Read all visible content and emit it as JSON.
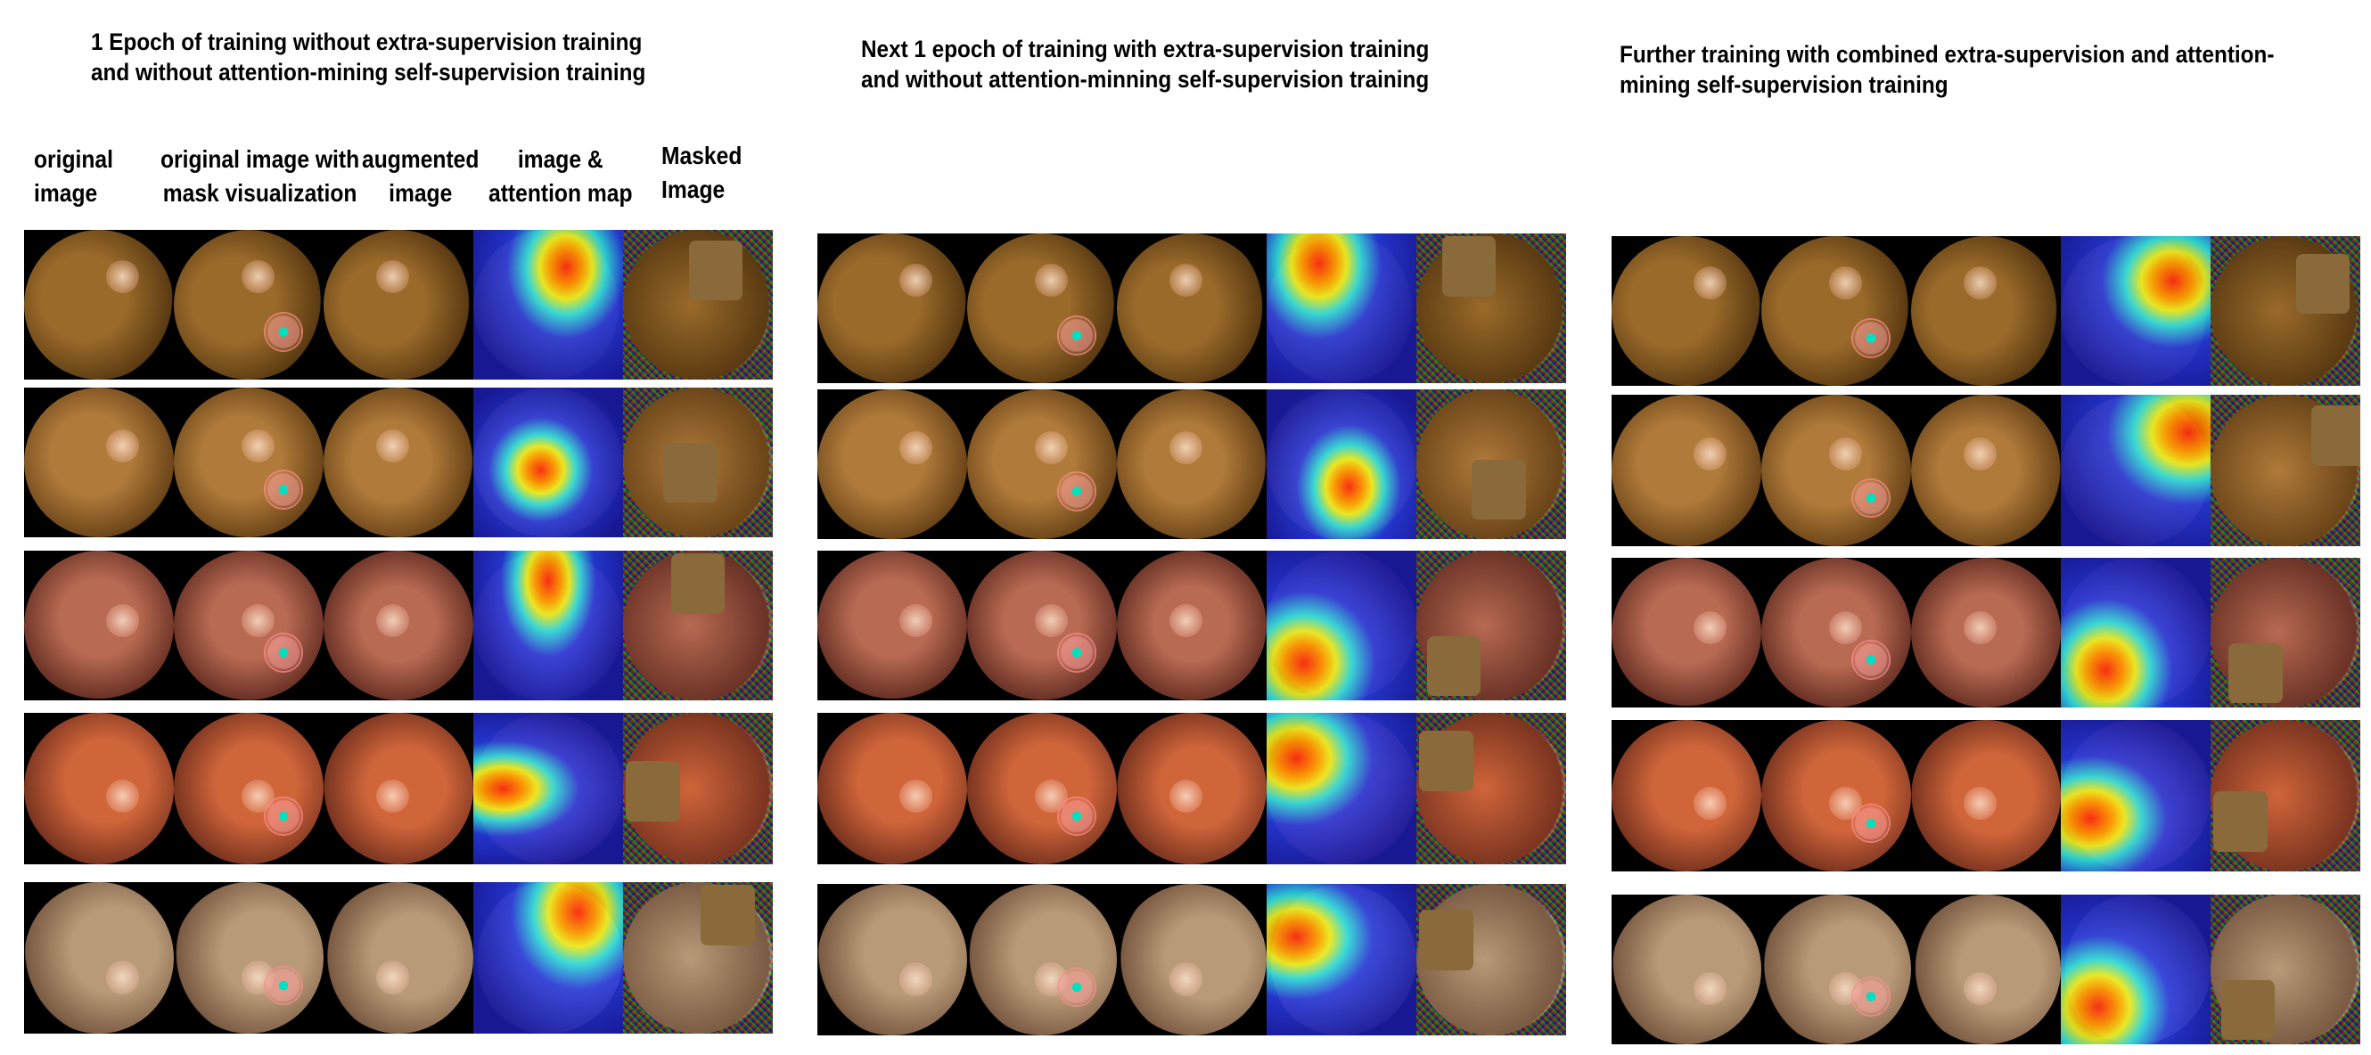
{
  "panels": [
    {
      "title": "1 Epoch of training without extra-supervision training\n and without attention-mining self-supervision training"
    },
    {
      "title": "Next 1 epoch of training with extra-supervision training\nand without attention-minning self-supervision training"
    },
    {
      "title": "Further training with combined extra-supervision and attention-\nmining self-supervision training"
    }
  ],
  "column_labels": [
    "original\nimage",
    "original image with\nmask visualization",
    "augmented\nimage",
    "image &\nattention map",
    "Masked\nImage"
  ],
  "colors": {
    "fundus_brown": "#8a5a22",
    "fundus_orange": "#b85a33",
    "fundus_red": "#9a4a3a",
    "fundus_pale": "#a08a6a",
    "attention_low": "#1a1aa0",
    "attention_high": "#ff2a10",
    "mask_patch": "#8a6a3a"
  }
}
